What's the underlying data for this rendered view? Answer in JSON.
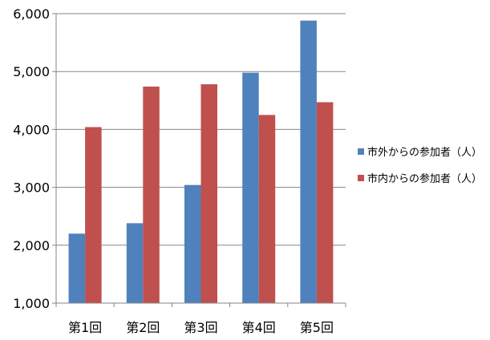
{
  "chart_data": {
    "type": "bar",
    "title": "",
    "xlabel": "",
    "ylabel": "",
    "categories": [
      "第1回",
      "第2回",
      "第3回",
      "第4回",
      "第5回"
    ],
    "series": [
      {
        "name": "市外からの参加者（人）",
        "color": "#4F81BD",
        "values": [
          2200,
          2380,
          3040,
          4980,
          5880
        ]
      },
      {
        "name": "市内からの参加者（人）",
        "color": "#C0504D",
        "values": [
          4040,
          4740,
          4780,
          4250,
          4470
        ]
      }
    ],
    "ylim": [
      1000,
      6000
    ],
    "yticks": [
      1000,
      2000,
      3000,
      4000,
      5000,
      6000
    ],
    "ytick_labels": [
      "1,000",
      "2,000",
      "3,000",
      "4,000",
      "5,000",
      "6,000"
    ],
    "grid": true,
    "legend": "right"
  }
}
